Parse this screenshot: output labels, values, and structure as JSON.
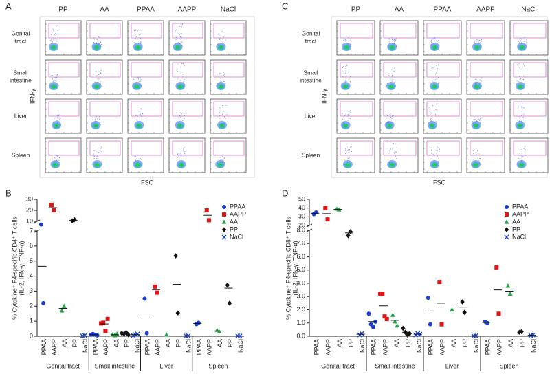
{
  "flow_panels": [
    {
      "panel": "A",
      "columns": [
        "PP",
        "AA",
        "PPAA",
        "AAPP",
        "NaCl"
      ],
      "rows": [
        "Genital\ntract",
        "Small\nintestine",
        "Liver",
        "Spleen"
      ],
      "ylabel": "IFN-γ",
      "xlabel": "FSC"
    },
    {
      "panel": "C",
      "columns": [
        "PP",
        "AA",
        "PPAA",
        "AAPP",
        "NaCl"
      ],
      "rows": [
        "Genital\ntract",
        "Small\nintestine",
        "Liver",
        "Spleen"
      ],
      "ylabel": "IFN-γ",
      "xlabel": "FSC"
    }
  ],
  "chart_data": [
    {
      "type": "dot",
      "panel": "B",
      "ylabel": [
        "% Cytokine⁺ F4-specific CD4⁺ T cells",
        "(IL-2, IFN-γ, TNF-α)"
      ],
      "groups": [
        "Genital tract",
        "Small intestine",
        "Liver",
        "Spleen"
      ],
      "segments": [
        {
          "ylim": [
            0,
            7
          ],
          "yticks": [
            0,
            1,
            2,
            3,
            4,
            5,
            6,
            7
          ]
        },
        {
          "ylim": [
            10,
            30
          ],
          "yticks": [
            10,
            20,
            30
          ]
        }
      ],
      "legend": "upper right",
      "series": [
        {
          "name": "PPAA",
          "color": "#1a3fd0",
          "marker": "circle",
          "values": [
            [
              7.1,
              2.2
            ],
            [
              0.1,
              0.15,
              0.1,
              0.05
            ],
            [
              2.5,
              0.2
            ],
            [
              0.8,
              0.9
            ]
          ],
          "means": [
            4.65,
            0.1,
            1.35,
            0.85
          ]
        },
        {
          "name": "AAPP",
          "color": "#e01414",
          "marker": "square",
          "values": [
            [
              25,
              20
            ],
            [
              0.85,
              0.9,
              0.35,
              1.15
            ],
            [
              3.3,
              2.9
            ],
            [
              20,
              11
            ]
          ],
          "means": [
            22.5,
            0.82,
            3.1,
            15.5
          ]
        },
        {
          "name": "AA",
          "color": "#22a34a",
          "marker": "triangle",
          "values": [
            [
              1.7,
              2.0
            ],
            [
              0.1,
              0.05,
              0.15
            ],
            [
              0.1
            ],
            [
              0.4,
              0.3
            ]
          ],
          "means": [
            1.85,
            0.1,
            null,
            0.35
          ]
        },
        {
          "name": "PP",
          "color": "#111111",
          "marker": "diamond",
          "values": [
            [
              10.5,
              11.5
            ],
            [
              0.2,
              0.15,
              0.25,
              0.1
            ],
            [
              5.35,
              1.55
            ],
            [
              3.4,
              2.2
            ]
          ],
          "means": [
            11,
            0.18,
            3.45,
            3.2
          ]
        },
        {
          "name": "NaCl",
          "color": "#1a3fd0",
          "marker": "x",
          "values": [
            [
              0.02,
              0.05
            ],
            [
              0.05,
              0.1,
              0.15
            ],
            [
              0.02,
              0.03
            ],
            [
              0.02,
              0.01
            ]
          ],
          "means": [
            0.03,
            0.1,
            0.02,
            0.02
          ]
        }
      ]
    },
    {
      "type": "dot",
      "panel": "D",
      "ylabel": [
        "% Cytokine⁺ F4-specific CD8⁺ T cells",
        "(IL-2, IFN-γ, TNF-α)"
      ],
      "groups": [
        "Genital tract",
        "Small intestine",
        "Liver",
        "Spleen"
      ],
      "segments": [
        {
          "ylim": [
            0,
            8
          ],
          "yticks": [
            {
              "value": 0,
              "label": "0.0"
            },
            {
              "value": 1,
              "label": "1.0"
            },
            {
              "value": 2,
              "label": "2.0"
            },
            {
              "value": 3,
              "label": "3.0"
            },
            {
              "value": 4,
              "label": "4.0"
            },
            {
              "value": 5,
              "label": "5.0"
            },
            {
              "value": 6,
              "label": "6.0"
            },
            {
              "value": 7,
              "label": "7.0"
            },
            {
              "value": 8,
              "label": "8.0"
            }
          ]
        },
        {
          "ylim": [
            20,
            50
          ],
          "yticks": [
            20,
            30,
            40,
            50
          ]
        }
      ],
      "legend": "upper right",
      "series": [
        {
          "name": "PPAA",
          "color": "#1a3fd0",
          "marker": "circle",
          "values": [
            [
              33,
              35
            ],
            [
              1.7,
              0.9,
              0.7,
              1.1
            ],
            [
              2.9,
              0.9
            ],
            [
              1.1,
              1.0
            ]
          ],
          "means": [
            34,
            1.1,
            1.9,
            1.05
          ]
        },
        {
          "name": "AAPP",
          "color": "#e01414",
          "marker": "square",
          "values": [
            [
              40,
              27
            ],
            [
              3.2,
              3.2,
              1.5,
              1.3
            ],
            [
              4.1,
              0.9
            ],
            [
              5.2,
              1.7
            ]
          ],
          "means": [
            33.5,
            2.3,
            2.5,
            3.5
          ]
        },
        {
          "name": "AA",
          "color": "#22a34a",
          "marker": "triangle",
          "values": [
            [
              39,
              38
            ],
            [
              1.6,
              1.1,
              0.8
            ],
            [
              2.0
            ],
            [
              3.8,
              3.2
            ]
          ],
          "means": [
            38.5,
            1.2,
            null,
            3.4
          ]
        },
        {
          "name": "PP",
          "color": "#111111",
          "marker": "diamond",
          "values": [
            [
              7.6,
              7.9
            ],
            [
              0.6,
              0.3,
              0.1,
              0.2
            ],
            [
              2.6,
              1.8
            ],
            [
              0.3,
              0.35
            ]
          ],
          "means": [
            7.8,
            0.3,
            2.2,
            null
          ]
        },
        {
          "name": "NaCl",
          "color": "#1a3fd0",
          "marker": "x",
          "values": [
            [
              0.1,
              0.2
            ],
            [
              0.1,
              0.2,
              0.15
            ],
            [
              0.02,
              0.03
            ],
            [
              0.05,
              0.1
            ]
          ],
          "means": [
            0.15,
            0.15,
            0.03,
            0.07
          ]
        }
      ]
    }
  ]
}
